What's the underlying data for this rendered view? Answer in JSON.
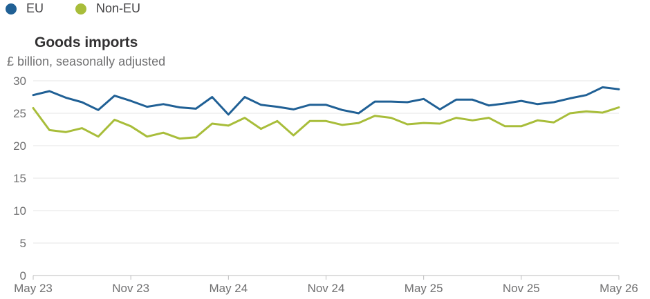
{
  "chart_data": {
    "type": "line",
    "title": "Goods imports",
    "subtitle": "£ billion, seasonally adjusted",
    "ylim": [
      0,
      30
    ],
    "y_ticks": [
      "0",
      "5",
      "10",
      "15",
      "20",
      "25",
      "30"
    ],
    "x_tick_labels": [
      "May 23",
      "Nov 23",
      "May 24",
      "Nov 24",
      "May 25",
      "Nov 25",
      "May 26"
    ],
    "grid": true,
    "legend_position": "top-left",
    "x": [
      "May 23",
      "Jun 23",
      "Jul 23",
      "Aug 23",
      "Sep 23",
      "Oct 23",
      "Nov 23",
      "Dec 23",
      "Jan 24",
      "Feb 24",
      "Mar 24",
      "Apr 24",
      "May 24",
      "Jun 24",
      "Jul 24",
      "Aug 24",
      "Sep 24",
      "Oct 24",
      "Nov 24",
      "Dec 24",
      "Jan 25",
      "Feb 25",
      "Mar 25",
      "Apr 25",
      "May 25",
      "Jun 25",
      "Jul 25",
      "Aug 25",
      "Sep 25",
      "Oct 25",
      "Nov 25",
      "Dec 25",
      "Jan 26",
      "Feb 26",
      "Mar 26",
      "Apr 26",
      "May 26"
    ],
    "series": [
      {
        "name": "EU",
        "color": "#206095",
        "values": [
          27.8,
          28.4,
          27.4,
          26.7,
          25.5,
          27.7,
          26.9,
          26.0,
          26.4,
          25.9,
          25.7,
          27.5,
          24.8,
          27.5,
          26.3,
          26.0,
          25.6,
          26.3,
          26.3,
          25.5,
          25.0,
          26.8,
          26.8,
          26.7,
          27.2,
          25.6,
          27.1,
          27.1,
          26.2,
          26.5,
          26.9,
          26.4,
          26.7,
          27.3,
          27.8,
          29.0,
          28.7
        ]
      },
      {
        "name": "Non-EU",
        "color": "#a8bd3a",
        "values": [
          25.8,
          22.4,
          22.1,
          22.7,
          21.4,
          24.0,
          23.0,
          21.4,
          22.0,
          21.1,
          21.3,
          23.4,
          23.1,
          24.3,
          22.6,
          23.8,
          21.6,
          23.8,
          23.8,
          23.2,
          23.5,
          24.6,
          24.3,
          23.3,
          23.5,
          23.4,
          24.3,
          23.9,
          24.3,
          23.0,
          23.0,
          23.9,
          23.6,
          25.0,
          25.3,
          25.1,
          25.9
        ]
      }
    ]
  }
}
